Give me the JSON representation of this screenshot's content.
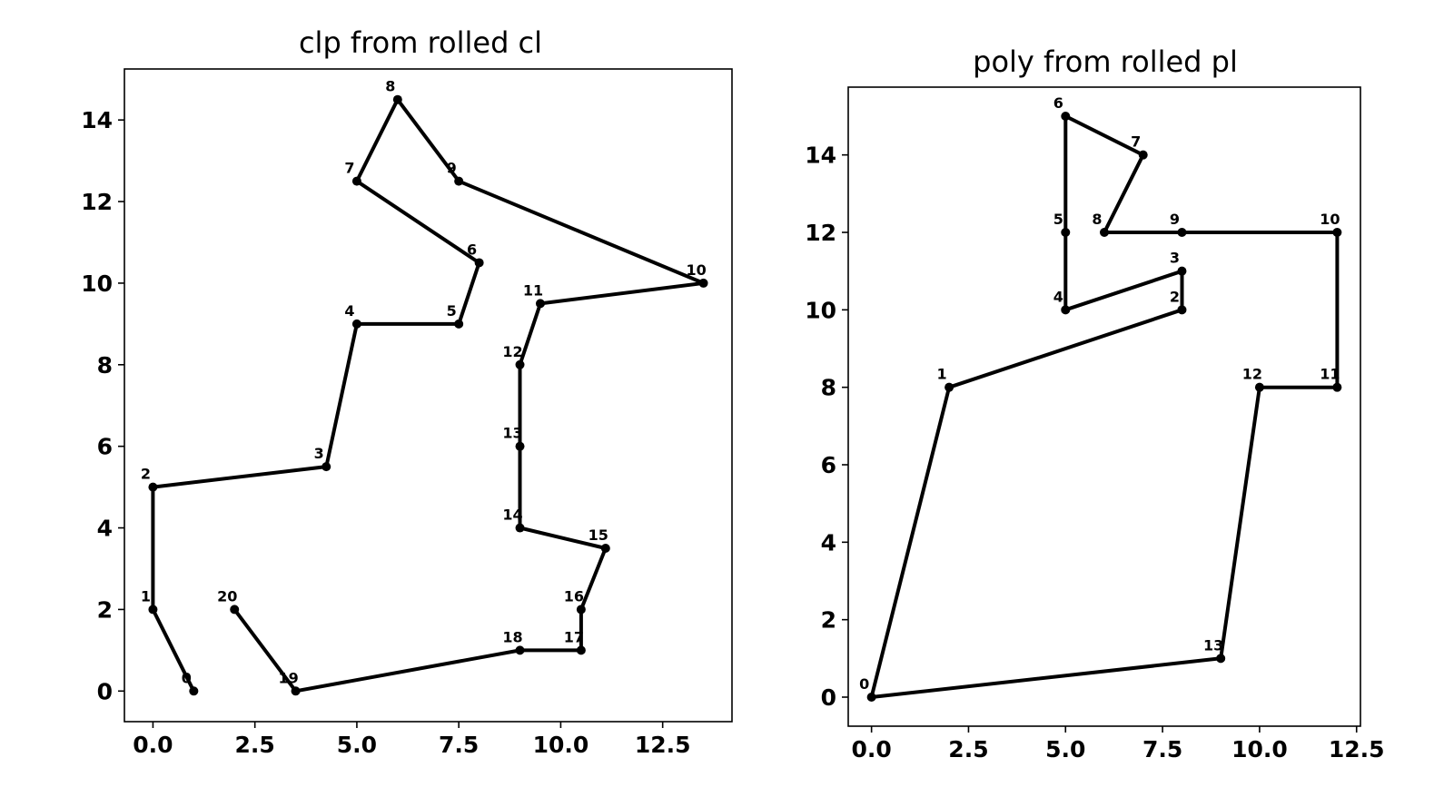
{
  "chart_data": [
    {
      "type": "line",
      "title": "clp from rolled cl",
      "xlabel": "",
      "ylabel": "",
      "xlim": [
        -0.7,
        14.2
      ],
      "ylim": [
        -0.75,
        15.25
      ],
      "xticks": [
        0.0,
        2.5,
        5.0,
        7.5,
        10.0,
        12.5
      ],
      "xtick_labels": [
        "0.0",
        "2.5",
        "5.0",
        "7.5",
        "10.0",
        "12.5"
      ],
      "yticks": [
        0,
        2,
        4,
        6,
        8,
        10,
        12,
        14
      ],
      "ytick_labels": [
        "0",
        "2",
        "4",
        "6",
        "8",
        "10",
        "12",
        "14"
      ],
      "grid": false,
      "closed": false,
      "points": [
        {
          "label": "0",
          "x": 1,
          "y": 0
        },
        {
          "label": "1",
          "x": 0,
          "y": 2
        },
        {
          "label": "2",
          "x": 0,
          "y": 5
        },
        {
          "label": "3",
          "x": 4.25,
          "y": 5.5
        },
        {
          "label": "4",
          "x": 5,
          "y": 9
        },
        {
          "label": "5",
          "x": 7.5,
          "y": 9
        },
        {
          "label": "6",
          "x": 8,
          "y": 10.5
        },
        {
          "label": "7",
          "x": 5,
          "y": 12.5
        },
        {
          "label": "8",
          "x": 6,
          "y": 14.5
        },
        {
          "label": "9",
          "x": 7.5,
          "y": 12.5
        },
        {
          "label": "10",
          "x": 13.5,
          "y": 10
        },
        {
          "label": "11",
          "x": 9.5,
          "y": 9.5
        },
        {
          "label": "12",
          "x": 9,
          "y": 8
        },
        {
          "label": "13",
          "x": 9,
          "y": 6
        },
        {
          "label": "14",
          "x": 9,
          "y": 4
        },
        {
          "label": "15",
          "x": 11.1,
          "y": 3.5
        },
        {
          "label": "16",
          "x": 10.5,
          "y": 2
        },
        {
          "label": "17",
          "x": 10.5,
          "y": 1
        },
        {
          "label": "18",
          "x": 9,
          "y": 1
        },
        {
          "label": "19",
          "x": 3.5,
          "y": 0
        },
        {
          "label": "20",
          "x": 2,
          "y": 2
        }
      ]
    },
    {
      "type": "line",
      "title": "poly from rolled pl",
      "xlabel": "",
      "ylabel": "",
      "xlim": [
        -0.6,
        12.6
      ],
      "ylim": [
        -0.75,
        15.75
      ],
      "xticks": [
        0.0,
        2.5,
        5.0,
        7.5,
        10.0,
        12.5
      ],
      "xtick_labels": [
        "0.0",
        "2.5",
        "5.0",
        "7.5",
        "10.0",
        "12.5"
      ],
      "yticks": [
        0,
        2,
        4,
        6,
        8,
        10,
        12,
        14
      ],
      "ytick_labels": [
        "0",
        "2",
        "4",
        "6",
        "8",
        "10",
        "12",
        "14"
      ],
      "grid": false,
      "closed": true,
      "points": [
        {
          "label": "0",
          "x": 0,
          "y": 0
        },
        {
          "label": "1",
          "x": 2,
          "y": 8
        },
        {
          "label": "2",
          "x": 8,
          "y": 10
        },
        {
          "label": "3",
          "x": 8,
          "y": 11
        },
        {
          "label": "4",
          "x": 5,
          "y": 10
        },
        {
          "label": "5",
          "x": 5,
          "y": 12
        },
        {
          "label": "6",
          "x": 5,
          "y": 15
        },
        {
          "label": "7",
          "x": 7,
          "y": 14
        },
        {
          "label": "8",
          "x": 6,
          "y": 12
        },
        {
          "label": "9",
          "x": 8,
          "y": 12
        },
        {
          "label": "10",
          "x": 12,
          "y": 12
        },
        {
          "label": "11",
          "x": 12,
          "y": 8
        },
        {
          "label": "12",
          "x": 10,
          "y": 8
        },
        {
          "label": "13",
          "x": 9,
          "y": 1
        }
      ]
    }
  ]
}
